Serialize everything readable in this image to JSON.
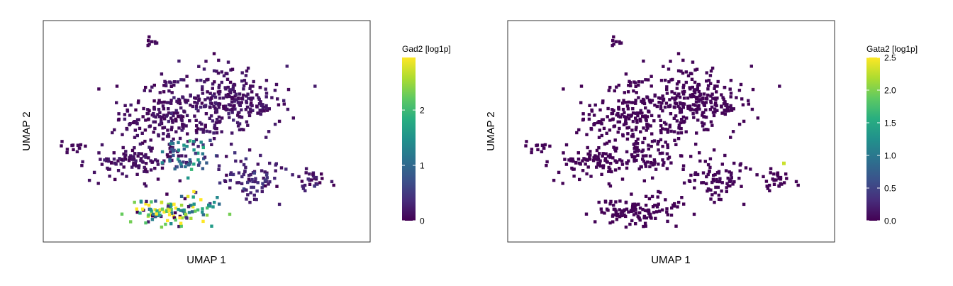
{
  "chart_data": [
    {
      "type": "scatter",
      "subtype": "hexbin-embedding",
      "title": "",
      "xlabel": "UMAP 1",
      "ylabel": "UMAP 2",
      "legend_title": "Gad2 [log1p]",
      "colorbar_ticks": [
        0,
        1,
        2
      ],
      "colorbar_range": [
        0,
        2.95
      ],
      "colormap": "viridis",
      "grid": false,
      "legend_position": "right",
      "clusters": [
        {
          "label": "",
          "x": 0.35,
          "y": 0.55,
          "spread": [
            0.07,
            0.05
          ],
          "count": 110,
          "value_mean": 0.1
        },
        {
          "label": "",
          "x": 0.5,
          "y": 0.62,
          "spread": [
            0.1,
            0.09
          ],
          "count": 220,
          "value_mean": 0.15
        },
        {
          "label": "",
          "x": 0.6,
          "y": 0.64,
          "spread": [
            0.07,
            0.05
          ],
          "count": 120,
          "value_mean": 0.12
        },
        {
          "label": "",
          "x": 0.3,
          "y": 0.36,
          "spread": [
            0.07,
            0.04
          ],
          "count": 110,
          "value_mean": 0.12
        },
        {
          "label": "",
          "x": 0.1,
          "y": 0.43,
          "spread": [
            0.02,
            0.015
          ],
          "count": 14,
          "value_mean": 0.05
        },
        {
          "label": "",
          "x": 0.45,
          "y": 0.38,
          "spread": [
            0.04,
            0.04
          ],
          "count": 60,
          "value_mean": 0.9
        },
        {
          "label": "",
          "x": 0.63,
          "y": 0.28,
          "spread": [
            0.05,
            0.05
          ],
          "count": 80,
          "value_mean": 0.25
        },
        {
          "label": "",
          "x": 0.4,
          "y": 0.14,
          "spread": [
            0.06,
            0.035
          ],
          "count": 120,
          "value_mean": 1.9
        },
        {
          "label": "",
          "x": 0.82,
          "y": 0.29,
          "spread": [
            0.025,
            0.025
          ],
          "count": 30,
          "value_mean": 0.2
        },
        {
          "label": "",
          "x": 0.32,
          "y": 0.9,
          "spread": [
            0.015,
            0.01
          ],
          "count": 8,
          "value_mean": 0.05
        }
      ]
    },
    {
      "type": "scatter",
      "subtype": "hexbin-embedding",
      "title": "",
      "xlabel": "UMAP 1",
      "ylabel": "UMAP 2",
      "legend_title": "Gata2 [log1p]",
      "colorbar_ticks": [
        0.0,
        0.5,
        1.0,
        1.5,
        2.0,
        2.5
      ],
      "colorbar_tick_labels": [
        "0.0",
        "0.5",
        "1.0",
        "1.5",
        "2.0",
        "2.5"
      ],
      "colorbar_range": [
        0,
        2.5
      ],
      "colormap": "viridis",
      "grid": false,
      "legend_position": "right",
      "clusters": [
        {
          "label": "",
          "x": 0.35,
          "y": 0.55,
          "spread": [
            0.07,
            0.05
          ],
          "count": 110,
          "value_mean": 0.02
        },
        {
          "label": "",
          "x": 0.5,
          "y": 0.62,
          "spread": [
            0.1,
            0.09
          ],
          "count": 220,
          "value_mean": 0.03
        },
        {
          "label": "",
          "x": 0.6,
          "y": 0.64,
          "spread": [
            0.07,
            0.05
          ],
          "count": 120,
          "value_mean": 0.03
        },
        {
          "label": "",
          "x": 0.3,
          "y": 0.36,
          "spread": [
            0.07,
            0.04
          ],
          "count": 110,
          "value_mean": 0.02
        },
        {
          "label": "",
          "x": 0.1,
          "y": 0.43,
          "spread": [
            0.02,
            0.015
          ],
          "count": 14,
          "value_mean": 0.02
        },
        {
          "label": "",
          "x": 0.45,
          "y": 0.38,
          "spread": [
            0.04,
            0.04
          ],
          "count": 60,
          "value_mean": 0.03
        },
        {
          "label": "",
          "x": 0.63,
          "y": 0.28,
          "spread": [
            0.05,
            0.05
          ],
          "count": 80,
          "value_mean": 0.03
        },
        {
          "label": "",
          "x": 0.4,
          "y": 0.14,
          "spread": [
            0.06,
            0.035
          ],
          "count": 120,
          "value_mean": 0.02
        },
        {
          "label": "",
          "x": 0.82,
          "y": 0.29,
          "spread": [
            0.025,
            0.025
          ],
          "count": 30,
          "value_mean": 0.02
        },
        {
          "label": "",
          "x": 0.32,
          "y": 0.9,
          "spread": [
            0.015,
            0.01
          ],
          "count": 8,
          "value_mean": 0.02
        }
      ],
      "highlight_points": [
        {
          "x": 0.845,
          "y": 0.355,
          "value": 2.3
        }
      ]
    }
  ]
}
